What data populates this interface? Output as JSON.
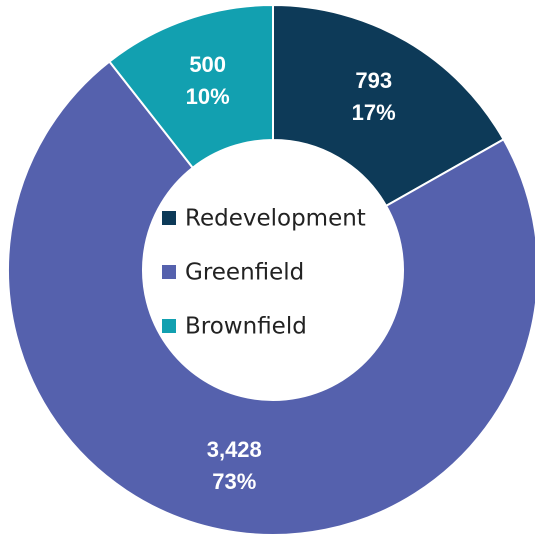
{
  "chart_data": {
    "type": "donut",
    "categories": [
      "Redevelopment",
      "Greenfield",
      "Brownfield"
    ],
    "values": [
      793,
      3428,
      500
    ],
    "value_labels": [
      "793",
      "3,428",
      "500"
    ],
    "percents": [
      17,
      73,
      10
    ],
    "percent_labels": [
      "17%",
      "73%",
      "10%"
    ],
    "colors": [
      "#0d3a58",
      "#5561ad",
      "#12a0b0"
    ],
    "legend": "center"
  }
}
